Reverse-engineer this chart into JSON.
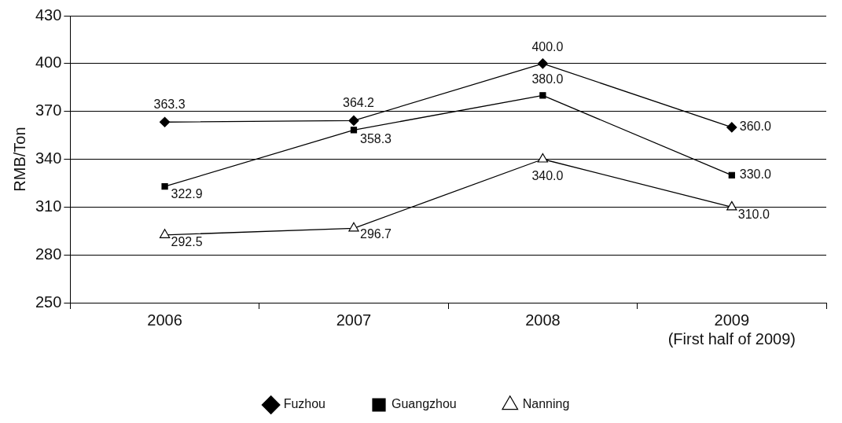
{
  "chart_data": {
    "type": "line",
    "ylabel": "RMB/Ton",
    "categories": [
      "2006",
      "2007",
      "2008",
      "2009\n(First half of 2009)"
    ],
    "series": [
      {
        "name": "Fuzhou",
        "color": "#000000",
        "marker": "diamond",
        "values": [
          363.3,
          364.2,
          400.0,
          360.0
        ],
        "value_labels": [
          "363.3",
          "364.2",
          "400.0",
          "360.0"
        ]
      },
      {
        "name": "Guangzhou",
        "color": "#000000",
        "marker": "square",
        "values": [
          322.9,
          358.3,
          380.0,
          330.0
        ],
        "value_labels": [
          "322.9",
          "358.3",
          "380.0",
          "330.0"
        ]
      },
      {
        "name": "Nanning",
        "color": "#000000",
        "marker": "triangle",
        "values": [
          292.5,
          296.7,
          340.0,
          310.0
        ],
        "value_labels": [
          "292.5",
          "296.7",
          "340.0",
          "310.0"
        ]
      }
    ],
    "ylim": [
      250,
      430
    ],
    "yticks": [
      250,
      280,
      310,
      340,
      370,
      400,
      430
    ],
    "grid": "y",
    "legend": "bottom"
  }
}
